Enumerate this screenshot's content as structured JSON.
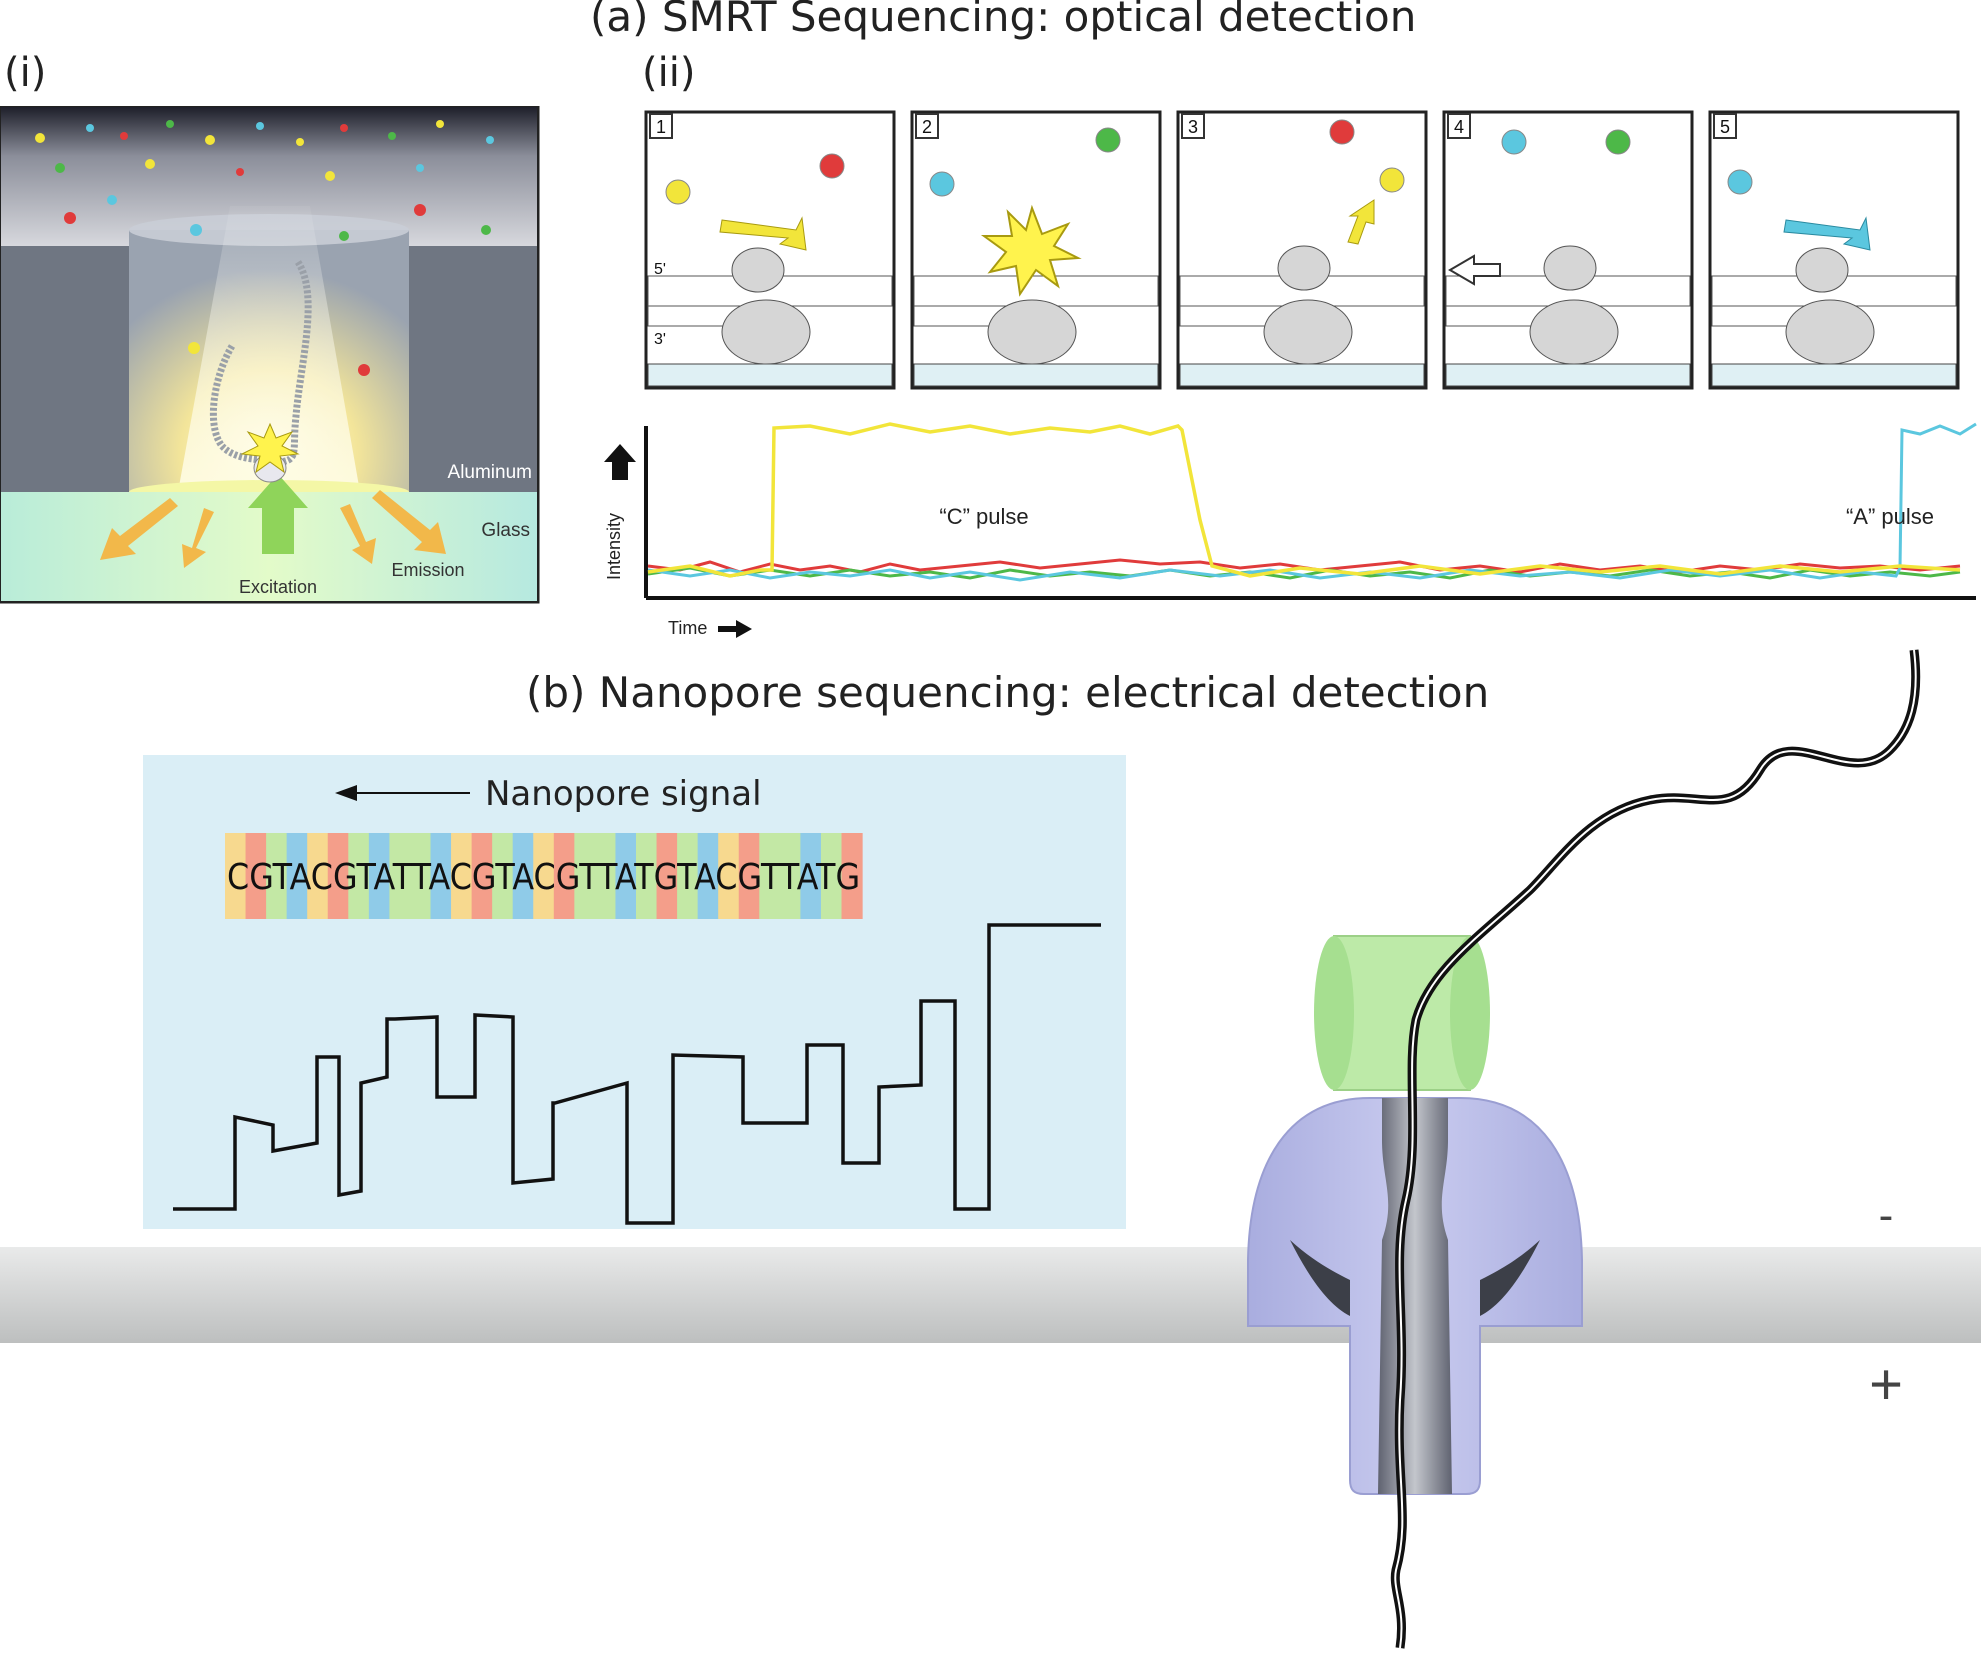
{
  "titles": {
    "a": "(a) SMRT Sequencing: optical detection",
    "b": "(b) Nanopore sequencing: electrical detection",
    "i": "(i)",
    "ii": "(ii)"
  },
  "zmw": {
    "aluminum": "Aluminum",
    "glass": "Glass",
    "excitation": "Excitation",
    "emission": "Emission"
  },
  "panels": [
    {
      "num": "1",
      "five_prime": "5'",
      "three_prime": "3'"
    },
    {
      "num": "2"
    },
    {
      "num": "3"
    },
    {
      "num": "4"
    },
    {
      "num": "5"
    }
  ],
  "trace": {
    "ylabel": "Intensity",
    "xlabel": "Time",
    "c_pulse": "“C” pulse",
    "a_pulse": "“A” pulse",
    "colors": {
      "C": "#f2e53a",
      "A": "#5bc7df",
      "G": "#4db848",
      "T": "#e03b3b"
    }
  },
  "nanopore": {
    "signal_label": "Nanopore signal",
    "sequence": "CGTACGTATTACGTACGTTATGTACGTTATG",
    "base_colors": {
      "C": "#f7d98f",
      "G": "#f49e8a",
      "T": "#c3e8a5",
      "A": "#8fcbe8"
    },
    "minus": "-",
    "plus": "+"
  }
}
